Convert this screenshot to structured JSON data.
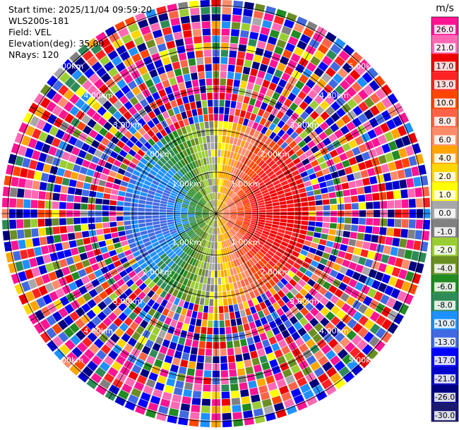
{
  "header": {
    "start_time": "Start time: 2025/11/04 09:59:20",
    "instrument": "WLS200s-181",
    "field": "Field: VEL",
    "elevation": "Elevation(deg): 35.00",
    "nrays": "NRays: 120"
  },
  "chart_data": {
    "type": "heatmap",
    "projection": "polar-ppi",
    "field": "VEL",
    "units": "m/s",
    "elevation_deg": 35.0,
    "n_rays": 120,
    "range_rings_km": [
      1,
      2,
      3,
      4,
      5
    ],
    "range_ring_labels": [
      "1.00km",
      "2.00km",
      "3.00km",
      "4.00km",
      "5.00km"
    ],
    "max_range_km": 5.15,
    "coherent_range_km": 2.2,
    "pattern": "radial velocity ~ cos(azimuth): negative (blue/green) toward the west, positive (orange/red) toward the east; noisy multicolour returns beyond ~2.2 km",
    "colorbar": {
      "unit_label": "m/s",
      "ticks": [
        "26.0",
        "21.0",
        "17.0",
        "13.0",
        "10.0",
        "8.0",
        "6.0",
        "4.0",
        "2.0",
        "1.0",
        "0.0",
        "-1.0",
        "-2.0",
        "-4.0",
        "-6.0",
        "-8.0",
        "-10.0",
        "-13.0",
        "-17.0",
        "-21.0",
        "-26.0",
        "-30.0"
      ],
      "colors": [
        "#ff1493",
        "#ff69b4",
        "#ee0000",
        "#ff2222",
        "#ff4500",
        "#ff6347",
        "#ff8c69",
        "#ffa500",
        "#ffd700",
        "#ffff00",
        "#a8a8a8",
        "#808080",
        "#9acd32",
        "#6b8e23",
        "#228b22",
        "#2e8b57",
        "#1e90ff",
        "#4169e1",
        "#0000ff",
        "#0000cd",
        "#000080",
        "#191970"
      ]
    }
  }
}
